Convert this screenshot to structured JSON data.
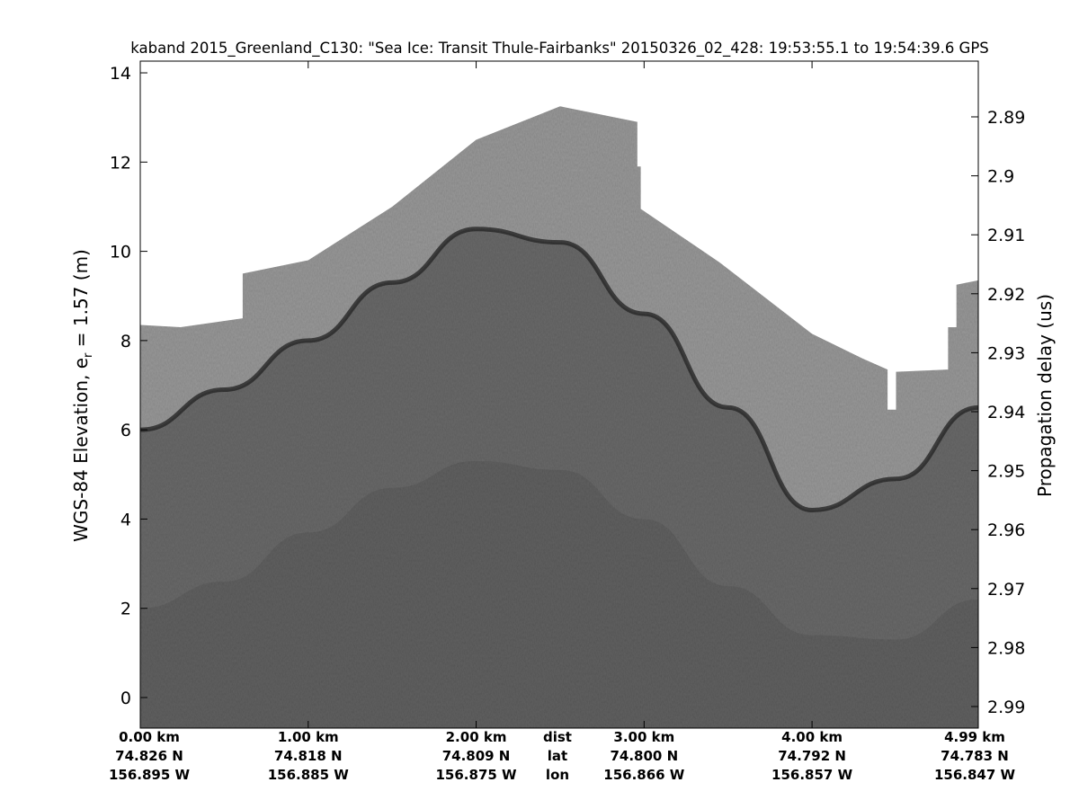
{
  "chart_data": {
    "type": "heatmap",
    "subtype": "radar echogram (grayscale)",
    "title": "kaband 2015_Greenland_C130: \"Sea Ice: Transit Thule-Fairbanks\"  20150326_02_428: 19:53:55.1 to 19:54:39.6 GPS",
    "ylabel": {
      "prefix": "WGS-84 Elevation, e",
      "subscript": "r",
      "suffix": " = 1.57 (m)"
    },
    "ylabel_right": "Propagation delay (us)",
    "ylim": [
      -0.68,
      14.26
    ],
    "xlim_km": [
      0,
      4.99
    ],
    "yticks": [
      0,
      2,
      4,
      6,
      8,
      10,
      12,
      14
    ],
    "yticks_right": [
      "2.89",
      "2.9",
      "2.91",
      "2.92",
      "2.93",
      "2.94",
      "2.95",
      "2.96",
      "2.97",
      "2.98",
      "2.99"
    ],
    "yticks_right_values": [
      2.89,
      2.9,
      2.91,
      2.92,
      2.93,
      2.94,
      2.95,
      2.96,
      2.97,
      2.98,
      2.99
    ],
    "xticks": [
      {
        "km": 0,
        "dist": "0.00 km",
        "lat": "74.826 N",
        "lon": "156.895 W"
      },
      {
        "km": 1,
        "dist": "1.00 km",
        "lat": "74.818 N",
        "lon": "156.885 W"
      },
      {
        "km": 2,
        "dist": "2.00 km",
        "lat": "74.809 N",
        "lon": "156.875 W"
      },
      {
        "km": 3,
        "dist": "3.00 km",
        "lat": "74.800 N",
        "lon": "156.866 W"
      },
      {
        "km": 4,
        "dist": "4.00 km",
        "lat": "74.792 N",
        "lon": "156.857 W"
      },
      {
        "km": 4.99,
        "dist": "4.99 km",
        "lat": "74.783 N",
        "lon": "156.847 W"
      }
    ],
    "row_labels": {
      "dist": "dist",
      "lat": "lat",
      "lon": "lon"
    },
    "data_top_boundary": {
      "km": [
        0,
        0.24,
        0.61,
        0.61,
        1.0,
        1.5,
        2.0,
        2.5,
        2.96,
        2.96,
        2.98,
        2.98,
        3.45,
        4.0,
        4.3,
        4.45,
        4.45,
        4.5,
        4.5,
        4.81,
        4.81,
        4.86,
        4.86,
        4.99
      ],
      "elevation": [
        8.35,
        8.3,
        8.5,
        9.5,
        9.8,
        11.0,
        12.5,
        13.25,
        12.9,
        11.9,
        11.9,
        10.95,
        9.75,
        8.15,
        7.6,
        7.35,
        6.45,
        6.45,
        7.3,
        7.35,
        8.3,
        8.3,
        9.25,
        9.35
      ]
    },
    "surface_interface": {
      "km": [
        0,
        0.5,
        1.0,
        1.5,
        2.0,
        2.5,
        3.0,
        3.5,
        4.0,
        4.5,
        4.99
      ],
      "elevation": [
        6.0,
        6.9,
        8.0,
        9.3,
        10.5,
        10.2,
        8.6,
        6.5,
        4.2,
        4.9,
        6.5
      ]
    },
    "faint_deep_layer": {
      "km": [
        0,
        0.5,
        1.0,
        1.5,
        2.0,
        2.5,
        3.0,
        3.5,
        4.0,
        4.5,
        4.99
      ],
      "elevation": [
        2.0,
        2.6,
        3.7,
        4.7,
        5.3,
        5.1,
        4.0,
        2.5,
        1.4,
        1.3,
        2.2
      ]
    },
    "colors": {
      "background": "#ffffff",
      "upper_echo": "#9c9c9c",
      "lower_echo": "#6c6c6c",
      "interface": "#2a2a2a"
    }
  }
}
